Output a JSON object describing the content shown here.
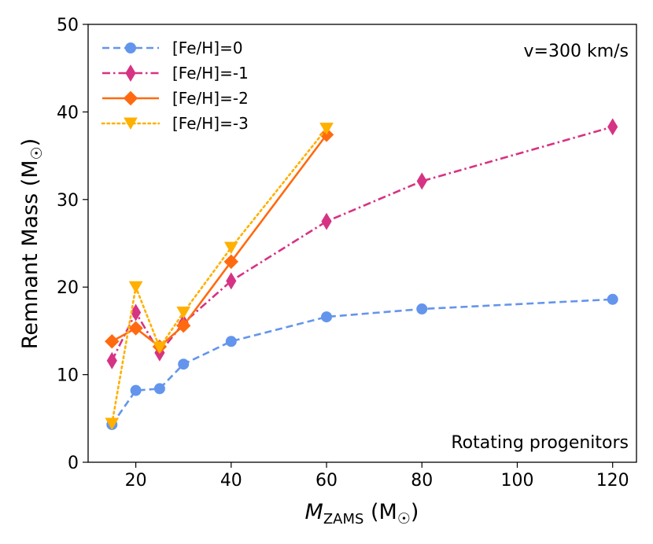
{
  "chart_data": {
    "type": "line",
    "title": "",
    "xlabel": {
      "main": "M",
      "sub": "ZAMS",
      "unit": " (M",
      "sun": "☉",
      "close": ")"
    },
    "ylabel": {
      "text": "Remnant Mass (M",
      "sun": "☉",
      "close": ")"
    },
    "xlim": [
      10,
      125
    ],
    "ylim": [
      0,
      50
    ],
    "xticks": [
      20,
      40,
      60,
      80,
      100,
      120
    ],
    "yticks": [
      0,
      10,
      20,
      30,
      40,
      50
    ],
    "legend_position": "top-left",
    "annotations": {
      "top_right": "v=300 km/s",
      "bottom_right": "Rotating progenitors"
    },
    "series": [
      {
        "name": "[Fe/H]=0",
        "color": "#6495ED",
        "dash": "dashed",
        "marker": "circle",
        "x": [
          15,
          20,
          25,
          30,
          40,
          60,
          80,
          120
        ],
        "y": [
          4.3,
          8.2,
          8.4,
          11.2,
          13.8,
          16.6,
          17.5,
          18.6
        ]
      },
      {
        "name": "[Fe/H]=-1",
        "color": "#D63384",
        "dash": "dashdot",
        "marker": "thin_diamond",
        "x": [
          15,
          20,
          25,
          30,
          40,
          60,
          80,
          120
        ],
        "y": [
          11.6,
          17.1,
          12.5,
          15.9,
          20.7,
          27.5,
          32.1,
          38.3
        ]
      },
      {
        "name": "[Fe/H]=-2",
        "color": "#FF6A10",
        "dash": "solid",
        "marker": "diamond",
        "x": [
          15,
          20,
          25,
          30,
          40,
          60
        ],
        "y": [
          13.8,
          15.3,
          13.2,
          15.6,
          22.9,
          37.4
        ]
      },
      {
        "name": "[Fe/H]=-3",
        "color": "#FFB000",
        "dash": "dotted",
        "marker": "triangle_down",
        "x": [
          15,
          20,
          25,
          30,
          40,
          60
        ],
        "y": [
          4.4,
          20.0,
          13.1,
          17.1,
          24.5,
          38.1
        ]
      }
    ]
  }
}
